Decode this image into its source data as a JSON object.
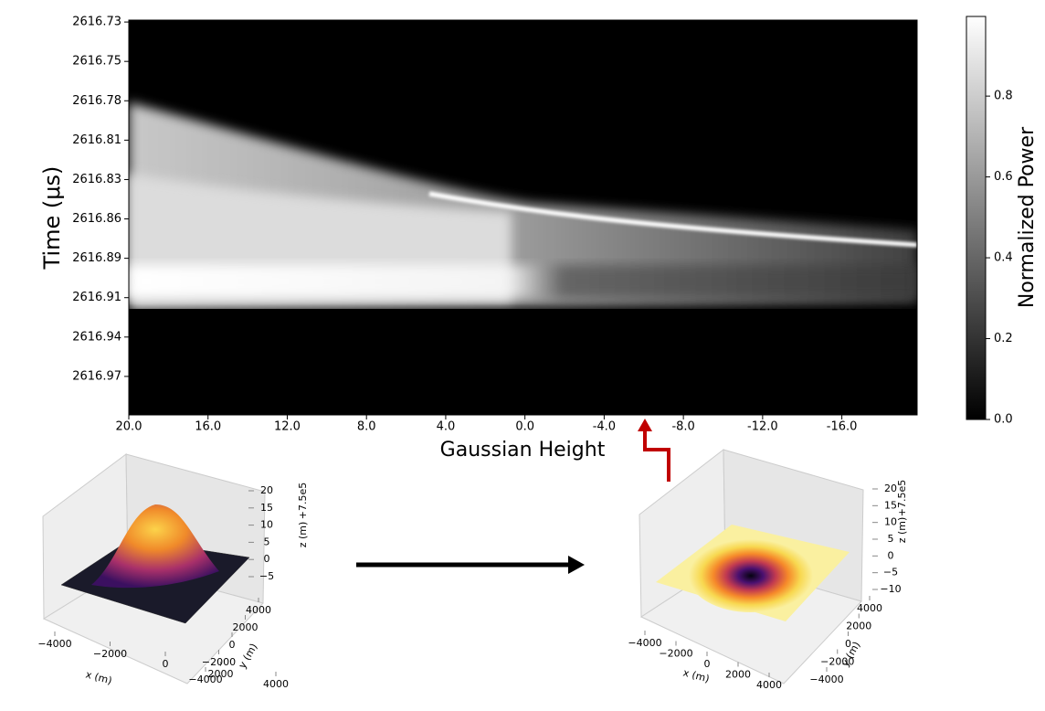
{
  "chart_data": {
    "type": "heatmap",
    "ylabel": "Time (μs)",
    "xlabel": "Gaussian Height",
    "xlim": [
      20,
      -19.8
    ],
    "xticks": [
      {
        "value": 20,
        "label": "20.0"
      },
      {
        "value": 16,
        "label": "16.0"
      },
      {
        "value": 12,
        "label": "12.0"
      },
      {
        "value": 8,
        "label": "8.0"
      },
      {
        "value": 4,
        "label": "4.0"
      },
      {
        "value": 0,
        "label": "0.0"
      },
      {
        "value": -4,
        "label": "-4.0"
      },
      {
        "value": -8,
        "label": "-8.0"
      },
      {
        "value": -12,
        "label": "-12.0"
      },
      {
        "value": -16,
        "label": "-16.0"
      }
    ],
    "ylim": [
      2616.9939,
      2616.7262
    ],
    "yticks": [
      {
        "value": 2616.7275,
        "label": "2616.73"
      },
      {
        "value": 2616.7542,
        "label": "2616.75"
      },
      {
        "value": 2616.7809,
        "label": "2616.78"
      },
      {
        "value": 2616.8076,
        "label": "2616.81"
      },
      {
        "value": 2616.8343,
        "label": "2616.83"
      },
      {
        "value": 2616.861,
        "label": "2616.86"
      },
      {
        "value": 2616.8877,
        "label": "2616.89"
      },
      {
        "value": 2616.9144,
        "label": "2616.91"
      },
      {
        "value": 2616.9411,
        "label": "2616.94"
      },
      {
        "value": 2616.9678,
        "label": "2616.97"
      }
    ],
    "colorbar_label": "Normalized Power",
    "clim": [
      0,
      0.997
    ],
    "cticks": [
      {
        "value": 0,
        "label": "0.0"
      },
      0.2,
      0.4,
      0.6,
      0.8
    ]
  },
  "surfaces": [
    {
      "xlabel": "x (m)",
      "ylabel": "y (m)",
      "zlabel": "z (m)",
      "offset": "+7.5e5",
      "xticks": [
        {
          "value": -4000,
          "label": "−4000"
        },
        {
          "value": -2000,
          "label": "−2000"
        },
        0,
        2000,
        4000
      ],
      "yticks": [
        {
          "value": -4000,
          "label": "−4000"
        },
        {
          "value": -2000,
          "label": "−2000"
        },
        0,
        2000,
        4000
      ],
      "zticks": [
        {
          "value": -5,
          "label": "−5"
        },
        0,
        5,
        10,
        15,
        20
      ]
    },
    {
      "xlabel": "x (m)",
      "ylabel": "y (m)",
      "zlabel": "z (m)",
      "offset": "+7.5e5",
      "xticks": [
        {
          "value": -4000,
          "label": "−4000"
        },
        {
          "value": -2000,
          "label": "−2000"
        },
        0,
        2000,
        4000
      ],
      "yticks": [
        {
          "value": -4000,
          "label": "−4000"
        },
        {
          "value": -2000,
          "label": "−2000"
        },
        0,
        2000,
        4000
      ],
      "zticks": [
        {
          "value": -10,
          "label": "−10"
        },
        {
          "value": -5,
          "label": "−5"
        },
        0,
        5,
        10,
        15,
        20
      ]
    }
  ]
}
